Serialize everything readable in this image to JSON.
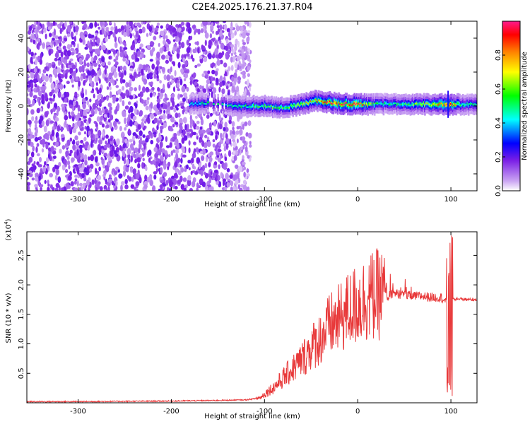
{
  "title": "C2E4.2025.176.21.37.R04",
  "colors": {
    "line": "#e8393a",
    "background": "#ffffff",
    "colorbar": [
      "#ffffff",
      "#8a2be2",
      "#0000ff",
      "#00ffff",
      "#00ff00",
      "#ffff00",
      "#ff8000",
      "#ff0000",
      "#ff1493"
    ]
  },
  "chart_data": [
    {
      "type": "heatmap",
      "xlabel": "Height of straight line (km)",
      "ylabel": "Frequency (Hz)",
      "xlim": [
        -355,
        128
      ],
      "ylim": [
        -50,
        50
      ],
      "xticks": [
        "-300",
        "-200",
        "-100",
        "0",
        "100"
      ],
      "xtick_values": [
        -300,
        -200,
        -100,
        0,
        100
      ],
      "yticks": [
        "-40",
        "-20",
        "0",
        "20",
        "40"
      ],
      "ytick_values": [
        -40,
        -20,
        0,
        20,
        40
      ],
      "colorbar": {
        "label": "Normalized spectral amplitude",
        "range": [
          0,
          1
        ],
        "ticks": [
          "0.0",
          "0.2",
          "0.4",
          "0.6",
          "0.8"
        ],
        "tick_values": [
          0.0,
          0.2,
          0.4,
          0.6,
          0.8
        ]
      },
      "noise_region_x": [
        -355,
        -115
      ],
      "signal_band": {
        "x": [
          -180,
          -165,
          -140,
          -120,
          -100,
          -80,
          -60,
          -45,
          -30,
          -10,
          0,
          20,
          40,
          60,
          80,
          90,
          95,
          100,
          110,
          128
        ],
        "center_hz": [
          1,
          2,
          0,
          0,
          0,
          -1,
          1,
          3,
          2,
          1,
          1,
          1,
          1,
          1,
          1,
          1,
          1,
          1,
          1,
          1
        ],
        "peak_amplitude": [
          0.4,
          0.45,
          0.45,
          0.5,
          0.55,
          0.55,
          0.65,
          0.75,
          0.9,
          0.95,
          0.95,
          0.5,
          0.5,
          0.6,
          0.7,
          0.9,
          0.95,
          0.95,
          0.5,
          0.5
        ]
      }
    },
    {
      "type": "line",
      "xlabel": "Height of straight line (km)",
      "ylabel": "SNR (10 * v/v)",
      "yscale_label": "(x10",
      "yscale_exponent": "4",
      "yscale_suffix": ")",
      "xlim": [
        -355,
        128
      ],
      "ylim": [
        0,
        2.9
      ],
      "xticks": [
        "-300",
        "-200",
        "-100",
        "0",
        "100"
      ],
      "xtick_values": [
        -300,
        -200,
        -100,
        0,
        100
      ],
      "yticks": [
        "0.5",
        "1.0",
        "1.5",
        "2.0",
        "2.5"
      ],
      "ytick_values": [
        0.5,
        1.0,
        1.5,
        2.0,
        2.5
      ],
      "series": [
        {
          "x": [
            -355,
            -300,
            -200,
            -150,
            -120,
            -105,
            -95,
            -90,
            -80,
            -70,
            -60,
            -50,
            -40,
            -30,
            -20,
            -10,
            0,
            10,
            20,
            30,
            40,
            50,
            60,
            70,
            80,
            90,
            95,
            97,
            98,
            100,
            102,
            110,
            120,
            128
          ],
          "values": [
            0.02,
            0.02,
            0.03,
            0.04,
            0.05,
            0.08,
            0.2,
            0.25,
            0.4,
            0.55,
            0.7,
            0.9,
            1.05,
            1.25,
            1.35,
            1.5,
            1.6,
            1.7,
            1.75,
            1.78,
            1.85,
            1.82,
            1.8,
            1.8,
            1.78,
            1.78,
            1.7,
            0.02,
            2.9,
            1.8,
            1.75,
            1.76,
            1.75,
            1.75
          ]
        }
      ]
    }
  ]
}
